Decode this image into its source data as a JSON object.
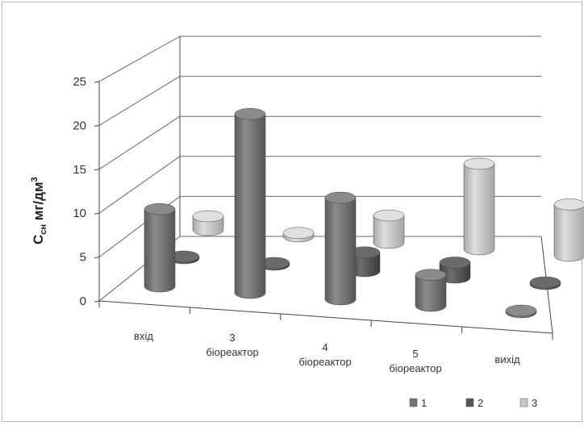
{
  "chart_data": {
    "type": "bar",
    "style": "3d-cylinder",
    "ylabel": "C",
    "ylabel_sub": "сн",
    "ylabel_units": " мг/дм",
    "ylabel_sup": "3",
    "ylim": [
      0,
      25
    ],
    "yticks": [
      "0",
      "5",
      "10",
      "15",
      "20",
      "25"
    ],
    "categories": [
      [
        "вхід"
      ],
      [
        "3",
        "біореактор"
      ],
      [
        "4",
        "біореактор"
      ],
      [
        "5",
        "біореактор"
      ],
      [
        "вихід"
      ]
    ],
    "series": [
      {
        "name": "1",
        "color": "#777777",
        "values": [
          9.5,
          22.0,
          12.5,
          3.8,
          0.2
        ]
      },
      {
        "name": "2",
        "color": "#555555",
        "values": [
          0.2,
          0.2,
          2.5,
          2.0,
          0.2
        ]
      },
      {
        "name": "3",
        "color": "#c8c8c8",
        "values": [
          2.0,
          0.5,
          4.0,
          12.5,
          7.5
        ]
      }
    ],
    "grid": true,
    "legend_position": "bottom-right"
  }
}
